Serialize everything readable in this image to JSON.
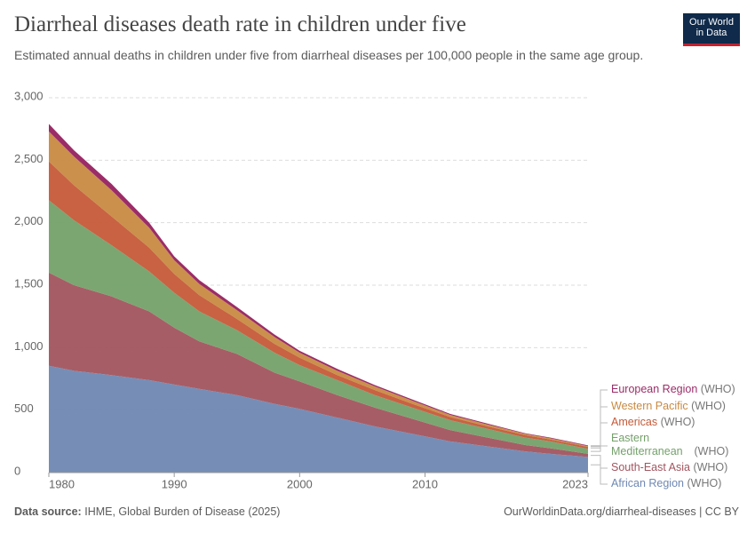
{
  "chart_data": {
    "type": "stacked-area",
    "title": "Diarrheal diseases death rate in children under five",
    "subtitle": "Estimated annual deaths in children under five from diarrheal diseases per 100,000 people in the same age group.",
    "logo": [
      "Our World",
      "in Data"
    ],
    "source_label": "Data source:",
    "source": "IHME, Global Burden of Disease (2025)",
    "footer_right": "OurWorldinData.org/diarrheal-diseases | CC BY",
    "legend_suffix": "(WHO)",
    "x": [
      1980,
      1982,
      1985,
      1988,
      1990,
      1992,
      1995,
      1998,
      2000,
      2003,
      2006,
      2009,
      2012,
      2015,
      2018,
      2020,
      2023
    ],
    "xlim": [
      1980,
      2023
    ],
    "xticks": [
      1980,
      1990,
      2000,
      2010,
      2023
    ],
    "ylim": [
      0,
      3000
    ],
    "yticks": [
      0,
      500,
      {
        "value": 1000,
        "label": "1,000"
      },
      {
        "value": 1500,
        "label": "1,500"
      },
      {
        "value": 2000,
        "label": "2,000"
      },
      {
        "value": 2500,
        "label": "2,500"
      },
      {
        "value": 3000,
        "label": "3,000"
      }
    ],
    "grid": true,
    "series": [
      {
        "name": "African Region",
        "color": "#6f88b2",
        "values": [
          855,
          815,
          780,
          740,
          705,
          670,
          620,
          550,
          510,
          440,
          370,
          310,
          250,
          210,
          170,
          150,
          125
        ]
      },
      {
        "name": "South-East Asia",
        "color": "#a2545e",
        "values": [
          745,
          685,
          630,
          550,
          455,
          380,
          330,
          250,
          220,
          180,
          150,
          120,
          90,
          70,
          50,
          45,
          25
        ]
      },
      {
        "name": "Eastern Mediterranean",
        "color": "#74a16a",
        "values": [
          580,
          520,
          410,
          320,
          280,
          240,
          190,
          160,
          130,
          120,
          100,
          90,
          80,
          70,
          60,
          55,
          40
        ]
      },
      {
        "name": "Americas",
        "color": "#c55a38",
        "values": [
          310,
          280,
          230,
          190,
          150,
          130,
          90,
          70,
          60,
          40,
          40,
          30,
          25,
          20,
          20,
          15,
          15
        ]
      },
      {
        "name": "Western Pacific",
        "color": "#c88a42",
        "values": [
          240,
          230,
          210,
          160,
          110,
          90,
          70,
          55,
          40,
          35,
          30,
          25,
          17,
          15,
          10,
          10,
          7
        ]
      },
      {
        "name": "European Region",
        "color": "#9b2c68",
        "values": [
          60,
          50,
          50,
          40,
          30,
          30,
          25,
          20,
          15,
          15,
          10,
          10,
          8,
          7,
          5,
          5,
          6
        ]
      }
    ]
  }
}
